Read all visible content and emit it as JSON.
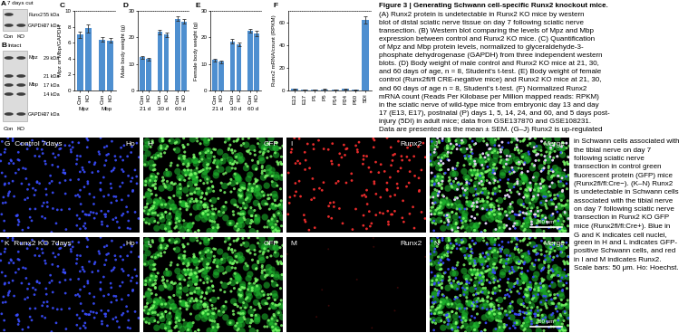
{
  "blots": [
    {
      "letter": "A",
      "title": "7 days cut",
      "lanes": [
        "Con",
        "KO"
      ],
      "bands": [
        {
          "name": "Runx2",
          "sizes": [
            "55 kDa"
          ]
        },
        {
          "name": "GAPDH",
          "sizes": [
            "37 kDa"
          ]
        }
      ]
    },
    {
      "letter": "B",
      "title": "Intact",
      "lanes": [
        "Con",
        "KO"
      ],
      "bands": [
        {
          "name": "Mpz",
          "sizes": [
            "29 kDa"
          ]
        },
        {
          "name": "Mbp",
          "sizes": [
            "21 kDa",
            "17 kDa",
            "14 kDa"
          ]
        },
        {
          "name": "GAPDH",
          "sizes": [
            "37 kDa"
          ]
        }
      ]
    }
  ],
  "chart_data": [
    {
      "type": "bar",
      "label": "C",
      "ylabel": "Mpz or Mbp/GAPDH",
      "groups": [
        "Mpz",
        "Mbp"
      ],
      "series": [
        {
          "name": "Con",
          "color": "#4e8fd0",
          "values": [
            7.0,
            6.4
          ],
          "errors": [
            0.4,
            0.3
          ]
        },
        {
          "name": "KO",
          "color": "#4e8fd0",
          "values": [
            7.8,
            6.3
          ],
          "errors": [
            0.5,
            0.3
          ]
        }
      ],
      "ylim": [
        0,
        10
      ],
      "yticks": [
        0,
        2,
        4,
        6,
        8,
        10
      ]
    },
    {
      "type": "bar",
      "label": "D",
      "ylabel": "Male body weight (g)",
      "groups": [
        "21 d",
        "30 d",
        "60 d"
      ],
      "series": [
        {
          "name": "Con",
          "color": "#4e8fd0",
          "values": [
            12.5,
            22.0,
            27.0
          ],
          "errors": [
            0.6,
            1.0,
            0.8
          ]
        },
        {
          "name": "KO",
          "color": "#4e8fd0",
          "values": [
            11.8,
            21.0,
            26.0
          ],
          "errors": [
            0.6,
            0.9,
            0.9
          ]
        }
      ],
      "ylim": [
        0,
        30
      ],
      "yticks": [
        0,
        10,
        20,
        30
      ]
    },
    {
      "type": "bar",
      "label": "E",
      "ylabel": "Female body weight (g)",
      "groups": [
        "21 d",
        "30 d",
        "60 d"
      ],
      "series": [
        {
          "name": "Con",
          "color": "#4e8fd0",
          "values": [
            11.5,
            18.5,
            22.5
          ],
          "errors": [
            0.5,
            0.8,
            0.8
          ]
        },
        {
          "name": "KO",
          "color": "#4e8fd0",
          "values": [
            10.8,
            17.5,
            21.5
          ],
          "errors": [
            0.5,
            0.7,
            0.9
          ]
        }
      ],
      "ylim": [
        0,
        30
      ],
      "yticks": [
        0,
        10,
        20,
        30
      ]
    },
    {
      "type": "bar",
      "label": "F",
      "ylabel": "Runx2 mRNA/count (RPKM)",
      "categories": [
        "E13",
        "E17",
        "P1",
        "P5",
        "P14",
        "P24",
        "P60",
        "5DI"
      ],
      "values": [
        1.2,
        0.8,
        0.9,
        1.0,
        0.9,
        1.2,
        0.4,
        62.0
      ],
      "errors": [
        0.3,
        0.2,
        0.2,
        0.2,
        0.2,
        0.3,
        0.1,
        3.0
      ],
      "color": "#4e8fd0",
      "ylim": [
        0,
        70
      ],
      "yticks": [
        0,
        20,
        40,
        60
      ]
    }
  ],
  "images": [
    {
      "letter": "G",
      "label": "Control 7days",
      "channel": "Ho",
      "color": "blue",
      "signal": true
    },
    {
      "letter": "H",
      "channel": "GFP",
      "color": "green",
      "signal": true
    },
    {
      "letter": "I",
      "channel": "Runx2",
      "color": "red",
      "signal": true
    },
    {
      "letter": "J",
      "channel": "Merge",
      "color": "merge",
      "signal": true,
      "scale_bar": "50 μm"
    },
    {
      "letter": "K",
      "label": "Runx2 KO 7days",
      "channel": "Ho",
      "color": "blue",
      "signal": true
    },
    {
      "letter": "L",
      "channel": "GFP",
      "color": "green",
      "signal": true
    },
    {
      "letter": "M",
      "channel": "Runx2",
      "color": "red",
      "signal": false
    },
    {
      "letter": "N",
      "channel": "Merge",
      "color": "merge",
      "signal": false,
      "scale_bar": "50 μm"
    }
  ],
  "caption": {
    "lines_wide": [
      "Figure 3 | Generating Schwann cell-specific Runx2 knockout mice.",
      "(A) Runx2 protein is undetectable in Runx2 KO mice by western",
      "blot of distal sciatic nerve tissue on day 7 following sciatic nerve",
      "transection. (B) Western blot comparing the levels of Mpz and Mbp",
      "expression between control and Runx2 KO mice. (C) Quantification",
      "of Mpz and Mbp protein levels, normalized to glyceraldehyde-3-",
      "phosphate dehydrogenase (GAPDH) from three independent western",
      "blots. (D) Body weight of male control and Runx2 KO mice at 21, 30,",
      "and 60 days of age, n = 8, Student's t-test. (E) Body weight of female",
      "control (Runx2fl/fl CRE-negative mice) and Runx2 KO mice at 21, 30,",
      "and 60 days of age n = 8, Student's t-test. (F) Normalized Runx2",
      "mRNA count (Reads Per Kilobase per Million mapped reads: RPKM)",
      "in the sciatic nerve of wild-type mice from embryonic day 13 and day",
      "17 (E13, E17), postnatal (P) days 1, 5, 14, 24, and 60, and 5 days post-",
      "injury (5DI) in adult mice; data from GSE137870 and GSE108231.",
      "Data are presented as the mean ± SEM. (G–J) Runx2 is up-regulated"
    ],
    "lines_narrow": [
      "in Schwann cells associated with",
      "the tibial nerve on day 7",
      "following sciatic nerve",
      "transection in control green",
      "fluorescent protein (GFP) mice",
      "(Runx2fl/fl:Cre−). (K–N) Runx2",
      "is undetectable in Schwann cells",
      "associated with the tibial nerve",
      "on day 7 following sciatic nerve",
      "transection in Runx2 KO GFP",
      "mice (Runx2fl/fl:Cre+). Blue in",
      "G and K indicates cell nuclei,",
      "green in H and L indicates GFP-",
      "positive Schwann cells, and red",
      "in I and M indicates Runx2.",
      "Scale bars: 50 μm. Ho: Hoechst."
    ]
  }
}
